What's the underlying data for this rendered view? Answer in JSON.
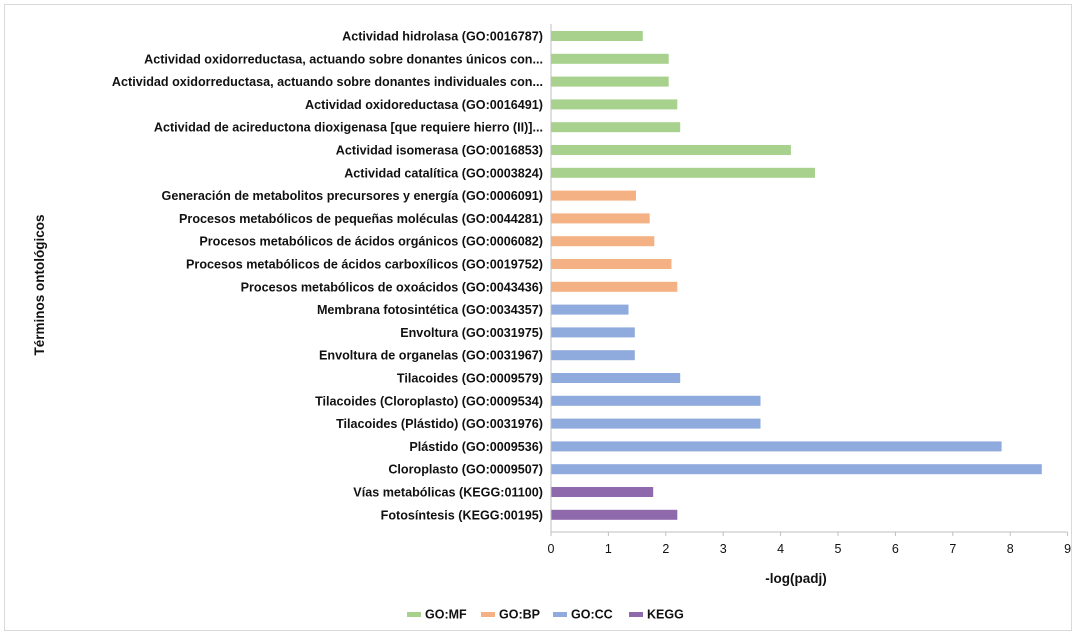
{
  "chart_data": {
    "type": "bar",
    "orientation": "horizontal",
    "xlabel": "-log(padj)",
    "ylabel": "Términos ontológicos",
    "xlim": [
      0,
      9
    ],
    "xticks": [
      0,
      1,
      2,
      3,
      4,
      5,
      6,
      7,
      8,
      9
    ],
    "grid": false,
    "legend_position": "bottom",
    "legend": [
      {
        "name": "GO:MF",
        "color": "#a9d18e"
      },
      {
        "name": "GO:BP",
        "color": "#f4b183"
      },
      {
        "name": "GO:CC",
        "color": "#8faadc"
      },
      {
        "name": "KEGG",
        "color": "#8e6aad"
      }
    ],
    "bars": [
      {
        "label": "Actividad hidrolasa (GO:0016787)",
        "value": 1.6,
        "group": "GO:MF"
      },
      {
        "label": "Actividad oxidorreductasa, actuando sobre donantes únicos con...",
        "value": 2.05,
        "group": "GO:MF"
      },
      {
        "label": "Actividad oxidorreductasa, actuando sobre donantes individuales con...",
        "value": 2.05,
        "group": "GO:MF"
      },
      {
        "label": "Actividad oxidoreductasa (GO:0016491)",
        "value": 2.2,
        "group": "GO:MF"
      },
      {
        "label": "Actividad de acireductona dioxigenasa [que requiere hierro (II)]...",
        "value": 2.25,
        "group": "GO:MF"
      },
      {
        "label": "Actividad isomerasa (GO:0016853)",
        "value": 4.18,
        "group": "GO:MF"
      },
      {
        "label": "Actividad catalítica (GO:0003824)",
        "value": 4.6,
        "group": "GO:MF"
      },
      {
        "label": "Generación de metabolitos precursores y energía (GO:0006091)",
        "value": 1.48,
        "group": "GO:BP"
      },
      {
        "label": "Procesos metabólicos de pequeñas moléculas (GO:0044281)",
        "value": 1.72,
        "group": "GO:BP"
      },
      {
        "label": "Procesos metabólicos de ácidos orgánicos (GO:0006082)",
        "value": 1.8,
        "group": "GO:BP"
      },
      {
        "label": "Procesos metabólicos de ácidos carboxílicos (GO:0019752)",
        "value": 2.1,
        "group": "GO:BP"
      },
      {
        "label": "Procesos metabólicos de oxoácidos (GO:0043436)",
        "value": 2.2,
        "group": "GO:BP"
      },
      {
        "label": "Membrana fotosintética (GO:0034357)",
        "value": 1.35,
        "group": "GO:CC"
      },
      {
        "label": "Envoltura (GO:0031975)",
        "value": 1.46,
        "group": "GO:CC"
      },
      {
        "label": "Envoltura de organelas (GO:0031967)",
        "value": 1.46,
        "group": "GO:CC"
      },
      {
        "label": "Tilacoides (GO:0009579)",
        "value": 2.25,
        "group": "GO:CC"
      },
      {
        "label": "Tilacoides (Cloroplasto) (GO:0009534)",
        "value": 3.65,
        "group": "GO:CC"
      },
      {
        "label": "Tilacoides (Plástido) (GO:0031976)",
        "value": 3.65,
        "group": "GO:CC"
      },
      {
        "label": "Plástido (GO:0009536)",
        "value": 7.85,
        "group": "GO:CC"
      },
      {
        "label": "Cloroplasto (GO:0009507)",
        "value": 8.55,
        "group": "GO:CC"
      },
      {
        "label": "Vías metabólicas (KEGG:01100)",
        "value": 1.78,
        "group": "KEGG"
      },
      {
        "label": "Fotosíntesis (KEGG:00195)",
        "value": 2.2,
        "group": "KEGG"
      }
    ]
  }
}
